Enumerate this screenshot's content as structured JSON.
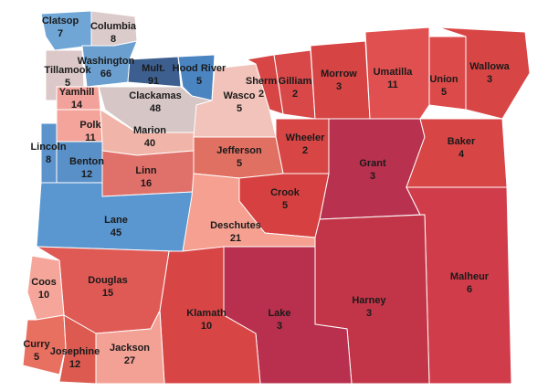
{
  "counties": [
    {
      "name": "Clatsop",
      "value": "7",
      "color": "#6fa6d6"
    },
    {
      "name": "Columbia",
      "value": "8",
      "color": "#dccbcb"
    },
    {
      "name": "Tillamook",
      "value": "5",
      "color": "#dcc8c8"
    },
    {
      "name": "Washington",
      "value": "66",
      "color": "#6a9fd0"
    },
    {
      "name": "Mult.",
      "value": "91",
      "color": "#3d5f8f"
    },
    {
      "name": "Hood River",
      "value": "5",
      "color": "#4a85c1"
    },
    {
      "name": "Yamhill",
      "value": "14",
      "color": "#f2a29a"
    },
    {
      "name": "Clackamas",
      "value": "48",
      "color": "#d6c6c6"
    },
    {
      "name": "Polk",
      "value": "11",
      "color": "#f4a49a"
    },
    {
      "name": "Marion",
      "value": "40",
      "color": "#f0b5a8"
    },
    {
      "name": "Lincoln",
      "value": "8",
      "color": "#5c93cc"
    },
    {
      "name": "Benton",
      "value": "12",
      "color": "#5a90c8"
    },
    {
      "name": "Linn",
      "value": "16",
      "color": "#e0706a"
    },
    {
      "name": "Lane",
      "value": "45",
      "color": "#5a96cf"
    },
    {
      "name": "Wasco",
      "value": "5",
      "color": "#f1c3ba"
    },
    {
      "name": "Sherm",
      "value": "2",
      "color": "#d84545"
    },
    {
      "name": "Gilliam",
      "value": "2",
      "color": "#d94848"
    },
    {
      "name": "Morrow",
      "value": "3",
      "color": "#d64444"
    },
    {
      "name": "Umatilla",
      "value": "11",
      "color": "#e05050"
    },
    {
      "name": "Union",
      "value": "5",
      "color": "#dd4a4a"
    },
    {
      "name": "Wallowa",
      "value": "3",
      "color": "#d84545"
    },
    {
      "name": "Wheeler",
      "value": "2",
      "color": "#d84545"
    },
    {
      "name": "Jefferson",
      "value": "5",
      "color": "#e07062"
    },
    {
      "name": "Grant",
      "value": "3",
      "color": "#b8314f"
    },
    {
      "name": "Baker",
      "value": "4",
      "color": "#d84545"
    },
    {
      "name": "Crook",
      "value": "5",
      "color": "#d74040"
    },
    {
      "name": "Deschutes",
      "value": "21",
      "color": "#f5a090"
    },
    {
      "name": "Malheur",
      "value": "6",
      "color": "#d03c4a"
    },
    {
      "name": "Harney",
      "value": "3",
      "color": "#c23548"
    },
    {
      "name": "Lake",
      "value": "3",
      "color": "#b8304e"
    },
    {
      "name": "Klamath",
      "value": "10",
      "color": "#d84545"
    },
    {
      "name": "Douglas",
      "value": "15",
      "color": "#e05a55"
    },
    {
      "name": "Coos",
      "value": "10",
      "color": "#f5a599"
    },
    {
      "name": "Curry",
      "value": "5",
      "color": "#e87060"
    },
    {
      "name": "Josephine",
      "value": "12",
      "color": "#dc5a50"
    },
    {
      "name": "Jackson",
      "value": "27",
      "color": "#f3a095"
    }
  ]
}
